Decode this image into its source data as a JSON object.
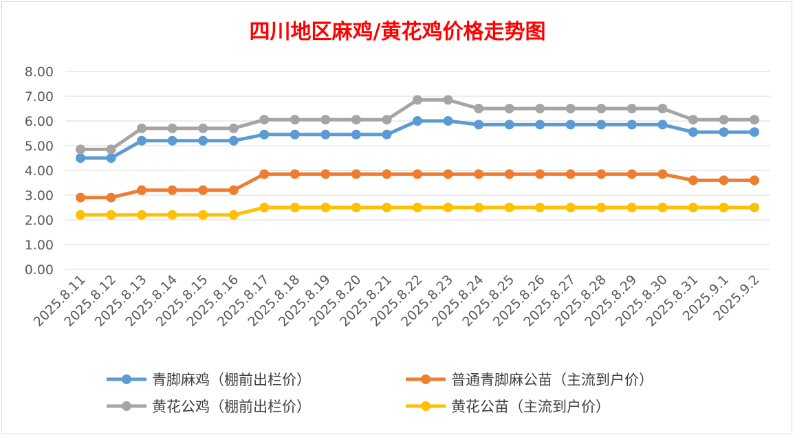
{
  "chart_data": {
    "type": "line",
    "title": "四川地区麻鸡/黄花鸡价格走势图",
    "xlabel": "",
    "ylabel": "",
    "ylim": [
      0,
      8
    ],
    "yticks": [
      "0.00",
      "1.00",
      "2.00",
      "3.00",
      "4.00",
      "5.00",
      "6.00",
      "7.00",
      "8.00"
    ],
    "grid": true,
    "legend_position": "bottom",
    "categories": [
      "2025.8.11",
      "2025.8.12",
      "2025.8.13",
      "2025.8.14",
      "2025.8.15",
      "2025.8.16",
      "2025.8.17",
      "2025.8.18",
      "2025.8.19",
      "2025.8.20",
      "2025.8.21",
      "2025.8.22",
      "2025.8.23",
      "2025.8.24",
      "2025.8.25",
      "2025.8.26",
      "2025.8.27",
      "2025.8.28",
      "2025.8.29",
      "2025.8.30",
      "2025.8.31",
      "2025.9.1",
      "2025.9.2"
    ],
    "series": [
      {
        "name": "青脚麻鸡（棚前出栏价）",
        "color": "#5b9bd5",
        "values": [
          4.5,
          4.5,
          5.2,
          5.2,
          5.2,
          5.2,
          5.45,
          5.45,
          5.45,
          5.45,
          5.45,
          6.0,
          6.0,
          5.85,
          5.85,
          5.85,
          5.85,
          5.85,
          5.85,
          5.85,
          5.55,
          5.55,
          5.55
        ]
      },
      {
        "name": "普通青脚麻公苗（主流到户价）",
        "color": "#ed7d31",
        "values": [
          2.9,
          2.9,
          3.2,
          3.2,
          3.2,
          3.2,
          3.85,
          3.85,
          3.85,
          3.85,
          3.85,
          3.85,
          3.85,
          3.85,
          3.85,
          3.85,
          3.85,
          3.85,
          3.85,
          3.85,
          3.6,
          3.6,
          3.6
        ]
      },
      {
        "name": "黄花公鸡（棚前出栏价）",
        "color": "#a5a5a5",
        "values": [
          4.85,
          4.85,
          5.7,
          5.7,
          5.7,
          5.7,
          6.05,
          6.05,
          6.05,
          6.05,
          6.05,
          6.85,
          6.85,
          6.5,
          6.5,
          6.5,
          6.5,
          6.5,
          6.5,
          6.5,
          6.05,
          6.05,
          6.05
        ]
      },
      {
        "name": "黄花公苗（主流到户价）",
        "color": "#ffc000",
        "values": [
          2.2,
          2.2,
          2.2,
          2.2,
          2.2,
          2.2,
          2.5,
          2.5,
          2.5,
          2.5,
          2.5,
          2.5,
          2.5,
          2.5,
          2.5,
          2.5,
          2.5,
          2.5,
          2.5,
          2.5,
          2.5,
          2.5,
          2.5
        ]
      }
    ]
  }
}
